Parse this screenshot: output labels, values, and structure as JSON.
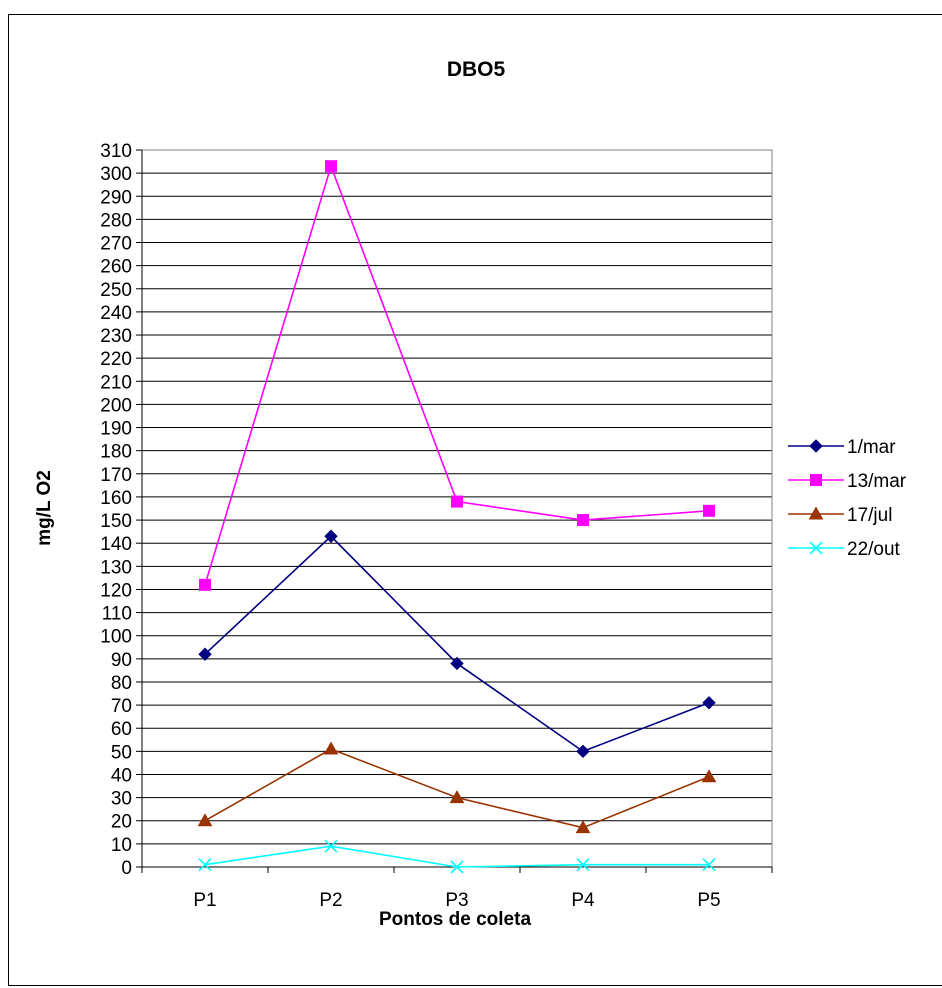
{
  "chart_data": {
    "type": "line",
    "title": "DBO5",
    "xlabel": "Pontos de coleta",
    "ylabel": "mg/L O2",
    "categories": [
      "P1",
      "P2",
      "P3",
      "P4",
      "P5"
    ],
    "ylim": [
      0,
      310
    ],
    "ytick_step": 10,
    "grid": "horizontal",
    "legend_position": "right",
    "series": [
      {
        "name": "1/mar",
        "values": [
          92,
          143,
          88,
          50,
          71
        ],
        "color": "#000080",
        "marker": "diamond"
      },
      {
        "name": "13/mar",
        "values": [
          122,
          303,
          158,
          150,
          154
        ],
        "color": "#ff00ff",
        "marker": "square"
      },
      {
        "name": "17/jul",
        "values": [
          20,
          51,
          30,
          17,
          39
        ],
        "color": "#993300",
        "marker": "triangle"
      },
      {
        "name": "22/out",
        "values": [
          1,
          9,
          0,
          1,
          1
        ],
        "color": "#00ffff",
        "marker": "x"
      }
    ]
  }
}
